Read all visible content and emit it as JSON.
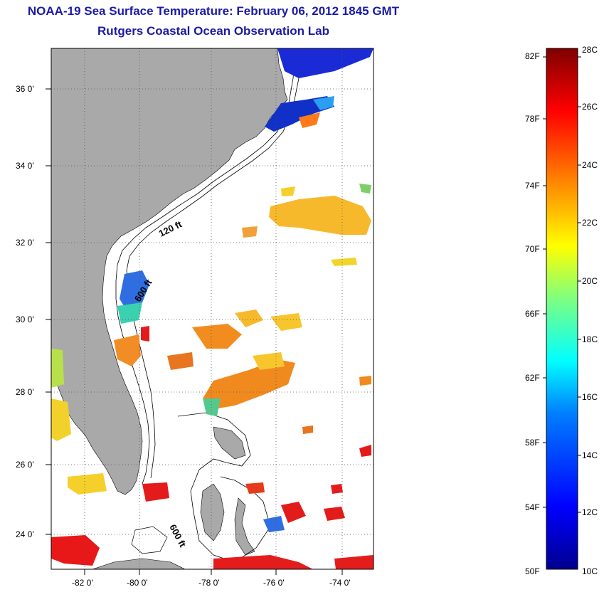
{
  "title": {
    "line1": "NOAA-19 Sea Surface Temperature:  February 06, 2012 1845 GMT",
    "line2": "Rutgers Coastal Ocean Observation Lab"
  },
  "map": {
    "lat_labels": [
      "36 0'",
      "34 0'",
      "32 0'",
      "30 0'",
      "28 0'",
      "26 0'",
      "24 0'"
    ],
    "lon_labels": [
      "-82 0'",
      "-80 0'",
      "-78 0'",
      "-76 0'",
      "-74 0'"
    ],
    "contour_labels": [
      "120 ft",
      "600 ft",
      "600 ft"
    ],
    "colors": {
      "land": "#a9a9a9",
      "ocean": "#ffffff",
      "grid": "#555555"
    }
  },
  "colorbar": {
    "fahrenheit": [
      "82F",
      "78F",
      "74F",
      "70F",
      "66F",
      "62F",
      "58F",
      "54F",
      "50F"
    ],
    "celsius": [
      "28C",
      "26C",
      "24C",
      "22C",
      "20C",
      "18C",
      "16C",
      "14C",
      "12C",
      "10C"
    ],
    "range_c": [
      10,
      28
    ],
    "colormap": [
      "#00008f",
      "#0000ff",
      "#007fff",
      "#00ffff",
      "#7fff7f",
      "#ffff00",
      "#ff7f00",
      "#ff0000",
      "#7f0000"
    ]
  }
}
